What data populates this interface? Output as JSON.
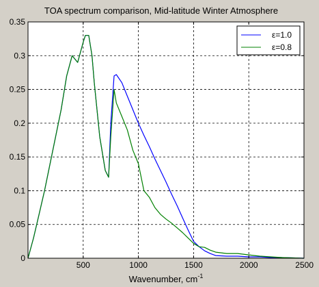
{
  "chart_data": {
    "type": "line",
    "title": "TOA spectrum comparison, Mid-latitude Winter Atmosphere",
    "xlabel": "Wavenumber, cm",
    "xlabel_superscript": "-1",
    "ylabel": "",
    "xlim": [
      0,
      2500
    ],
    "ylim": [
      0,
      0.35
    ],
    "xticks": [
      500,
      1000,
      1500,
      2000,
      2500
    ],
    "xtick_labels": [
      "500",
      "1000",
      "1500",
      "2000",
      "2500"
    ],
    "yticks": [
      0,
      0.05,
      0.1,
      0.15,
      0.2,
      0.25,
      0.3,
      0.35
    ],
    "ytick_labels": [
      "0",
      "0.05",
      "0.1",
      "0.15",
      "0.2",
      "0.25",
      "0.3",
      "0.35"
    ],
    "grid": true,
    "grid_style": "dashed",
    "legend_position": "top-right",
    "background_color": "#d4d0c8",
    "plot_background": "#ffffff",
    "series": [
      {
        "name": "ε=1.0",
        "color": "#0000ff",
        "x": [
          0,
          50,
          100,
          150,
          200,
          250,
          300,
          350,
          400,
          450,
          500,
          520,
          550,
          580,
          600,
          650,
          700,
          730,
          750,
          780,
          800,
          850,
          900,
          950,
          1000,
          1050,
          1100,
          1150,
          1200,
          1250,
          1300,
          1350,
          1400,
          1450,
          1500,
          1550,
          1600,
          1650,
          1700,
          1800,
          1900,
          2000,
          2100,
          2200,
          2300,
          2400,
          2500
        ],
        "y": [
          0,
          0.03,
          0.065,
          0.1,
          0.14,
          0.18,
          0.22,
          0.27,
          0.3,
          0.29,
          0.32,
          0.33,
          0.33,
          0.3,
          0.26,
          0.18,
          0.13,
          0.12,
          0.2,
          0.27,
          0.272,
          0.26,
          0.24,
          0.22,
          0.2,
          0.182,
          0.165,
          0.147,
          0.13,
          0.113,
          0.095,
          0.078,
          0.06,
          0.042,
          0.025,
          0.017,
          0.011,
          0.007,
          0.004,
          0.003,
          0.003,
          0.002,
          0.002,
          0.001,
          0.001,
          0.0005,
          0
        ]
      },
      {
        "name": "ε=0.8",
        "color": "#008000",
        "x": [
          0,
          50,
          100,
          150,
          200,
          250,
          300,
          350,
          400,
          450,
          500,
          520,
          550,
          580,
          600,
          650,
          700,
          730,
          750,
          780,
          800,
          850,
          900,
          950,
          1000,
          1050,
          1100,
          1150,
          1200,
          1250,
          1300,
          1350,
          1400,
          1450,
          1500,
          1550,
          1600,
          1650,
          1700,
          1800,
          1900,
          2000,
          2100,
          2200,
          2300,
          2400,
          2500
        ],
        "y": [
          0,
          0.03,
          0.065,
          0.1,
          0.14,
          0.18,
          0.22,
          0.27,
          0.3,
          0.29,
          0.32,
          0.33,
          0.33,
          0.3,
          0.26,
          0.18,
          0.13,
          0.12,
          0.18,
          0.25,
          0.23,
          0.21,
          0.19,
          0.16,
          0.14,
          0.1,
          0.09,
          0.075,
          0.065,
          0.058,
          0.052,
          0.045,
          0.038,
          0.03,
          0.022,
          0.017,
          0.016,
          0.012,
          0.009,
          0.007,
          0.007,
          0.005,
          0.003,
          0.002,
          0.001,
          0.0005,
          0
        ]
      }
    ]
  }
}
